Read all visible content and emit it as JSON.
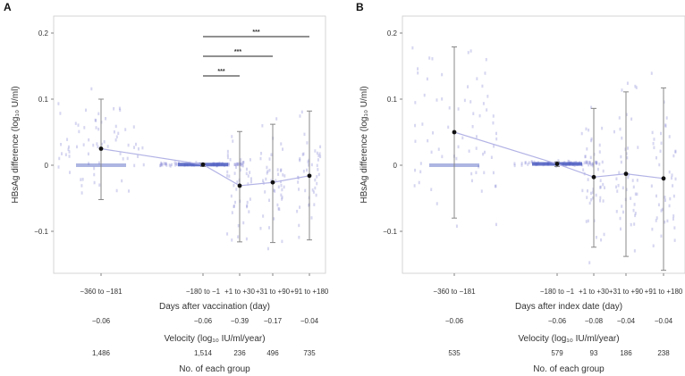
{
  "chart_data": [
    {
      "type": "scatter",
      "panel": "A",
      "ylabel": "HBsAg difference (log₁₀ U/ml)",
      "xlabel": "Days after vaccination (day)",
      "ylim": [
        -0.16,
        0.21
      ],
      "yticks": [
        "0.2",
        "0.1",
        "0",
        "−0.1"
      ],
      "categories": [
        "−360 to −181",
        "−180 to −1",
        "+1 to +30",
        "+31 to +90",
        "+91 to +180"
      ],
      "means": [
        0.025,
        0.001,
        -0.031,
        -0.026,
        -0.016
      ],
      "ci_low": [
        -0.052,
        -0.002,
        -0.116,
        -0.117,
        -0.113
      ],
      "ci_high": [
        0.1,
        0.003,
        0.051,
        0.062,
        0.082
      ],
      "velocity_label": "Velocity (log₁₀ IU/ml/year)",
      "velocity": [
        "−0.06",
        "−0.06",
        "−0.39",
        "−0.17",
        "−0.04"
      ],
      "count_label": "No. of each group",
      "counts": [
        "1,486",
        "1,514",
        "236",
        "496",
        "735"
      ],
      "significance": [
        {
          "from": 1,
          "to": 2,
          "label": "***"
        },
        {
          "from": 1,
          "to": 3,
          "label": "***"
        },
        {
          "from": 1,
          "to": 4,
          "label": "***"
        }
      ],
      "grid": false
    },
    {
      "type": "scatter",
      "panel": "B",
      "ylabel": "HBsAg difference (log₁₀ U/ml)",
      "xlabel": "Days after index date (day)",
      "ylim": [
        -0.16,
        0.21
      ],
      "yticks": [
        "0.2",
        "0.1",
        "0",
        "−0.1"
      ],
      "categories": [
        "−360 to −181",
        "−180 to −1",
        "+1 to +30",
        "+31 to +90",
        "+91 to +180"
      ],
      "means": [
        0.05,
        0.002,
        -0.018,
        -0.013,
        -0.02
      ],
      "ci_low": [
        -0.08,
        -0.002,
        -0.124,
        -0.138,
        -0.159
      ],
      "ci_high": [
        0.179,
        0.005,
        0.086,
        0.111,
        0.117
      ],
      "velocity_label": "Velocity (log₁₀ IU/ml/year)",
      "velocity": [
        "−0.06",
        "−0.06",
        "−0.08",
        "−0.04",
        "−0.04"
      ],
      "count_label": "No. of each group",
      "counts": [
        "535",
        "579",
        "93",
        "186",
        "238"
      ],
      "significance": [],
      "grid": false
    }
  ],
  "colors": {
    "points": "#8a8ad8",
    "band": "#4a5bbf",
    "mean_line": "#b3b3e6",
    "mean_dot": "#111111",
    "errorbar": "#888888",
    "frame": "#cccccc",
    "bracket": "#222222"
  }
}
